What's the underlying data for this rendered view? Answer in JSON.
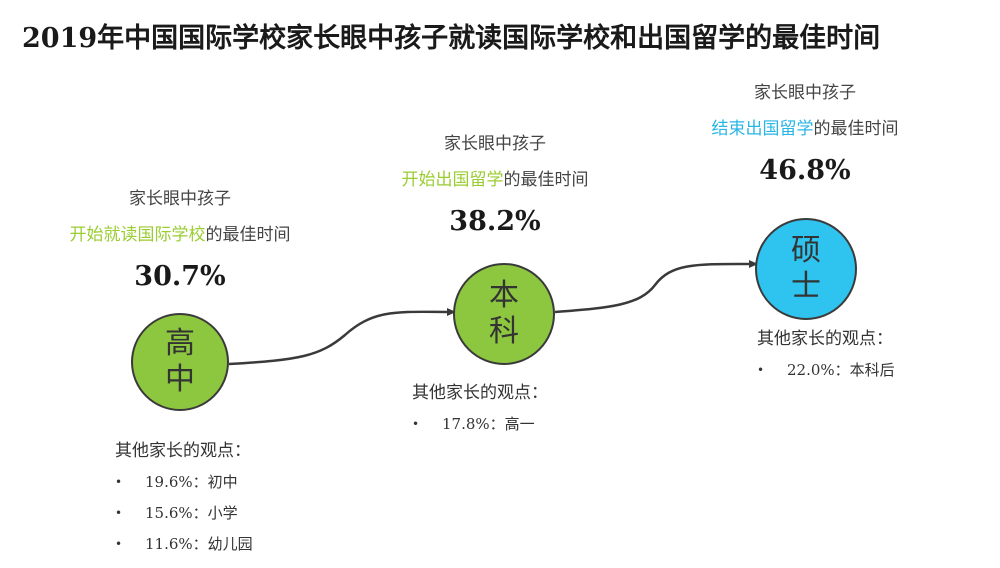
{
  "title": "2019年中国国际学校家长眼中孩子就读国际学校和出国留学的最佳时间",
  "colors": {
    "stage1": "#8dc63f",
    "stage2": "#8dc63f",
    "stage3": "#2ec4ef",
    "highlight_green": "#9acd32",
    "highlight_blue": "#29b6e6",
    "connector": "#3a3a3a"
  },
  "stages": [
    {
      "lead": "家长眼中孩子",
      "highlight": "开始就读国际学校",
      "suffix": "的最佳时间",
      "percent": "30.7%",
      "circle_label": [
        "高",
        "中"
      ],
      "others_heading": "其他家长的观点：",
      "others": [
        {
          "value": "19.6%：",
          "label": "初中"
        },
        {
          "value": "15.6%：",
          "label": "小学"
        },
        {
          "value": "11.6%：",
          "label": "幼儿园"
        }
      ]
    },
    {
      "lead": "家长眼中孩子",
      "highlight": "开始出国留学",
      "suffix": "的最佳时间",
      "percent": "38.2%",
      "circle_label": [
        "本",
        "科"
      ],
      "others_heading": "其他家长的观点：",
      "others": [
        {
          "value": "17.8%：",
          "label": "高一"
        }
      ]
    },
    {
      "lead": "家长眼中孩子",
      "highlight": "结束出国留学",
      "suffix": "的最佳时间",
      "percent": "46.8%",
      "circle_label": [
        "硕",
        "士"
      ],
      "others_heading": "其他家长的观点：",
      "others": [
        {
          "value": "22.0%：",
          "label": "本科后"
        }
      ]
    }
  ],
  "bullet": "•"
}
